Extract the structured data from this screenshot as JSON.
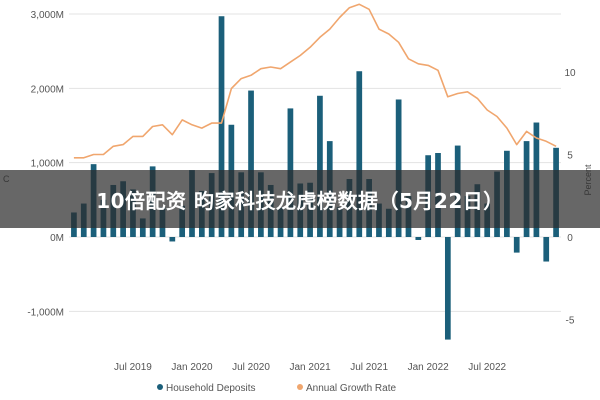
{
  "banner": {
    "title": "10倍配资 昀家科技龙虎榜数据（5月22日）"
  },
  "colors": {
    "bars": "#1b5f7a",
    "line": "#f0a66e",
    "grid": "#e3e3e3",
    "banner_bg": "#2d2d2d"
  },
  "chart_data": {
    "type": "bar+line",
    "y_left": {
      "range": [
        -1500,
        3000
      ],
      "ticks": [
        3000,
        2000,
        1000,
        0,
        -1000
      ],
      "tick_labels": [
        "3,000M",
        "2,000M",
        "1,000M",
        "0M",
        "-1,000M"
      ],
      "title": "C"
    },
    "y_right": {
      "range": [
        -7.5,
        14.5
      ],
      "ticks": [
        10,
        5,
        0,
        -5
      ],
      "tick_labels": [
        "10",
        "5",
        "0",
        "-5"
      ],
      "title": "Percent"
    },
    "x_tick_labels": [
      "Jul 2019",
      "Jan 2020",
      "Jul 2020",
      "Jan 2021",
      "Jul 2021",
      "Jan 2022",
      "Jul 2022"
    ],
    "x_tick_month_index": [
      6,
      12,
      18,
      24,
      30,
      36,
      42
    ],
    "legend": [
      {
        "name": "Household Deposits",
        "color": "#1b5f7a",
        "marker": "circle"
      },
      {
        "name": "Annual Growth Rate",
        "color": "#f0a66e",
        "marker": "circle"
      }
    ],
    "months_start": "2019-01",
    "series": [
      {
        "name": "Household Deposits",
        "kind": "bar",
        "values": [
          330,
          450,
          980,
          500,
          700,
          750,
          640,
          250,
          950,
          400,
          -60,
          420,
          900,
          620,
          860,
          2970,
          1510,
          870,
          1970,
          870,
          700,
          400,
          1730,
          720,
          730,
          1900,
          1290,
          400,
          780,
          2230,
          780,
          450,
          380,
          1850,
          550,
          -40,
          1100,
          1130,
          -1380,
          1230,
          550,
          710,
          450,
          880,
          1160,
          -210,
          1290,
          1540,
          -330,
          1200
        ]
      },
      {
        "name": "Annual Growth Rate",
        "kind": "line",
        "values": [
          4.8,
          4.8,
          5.0,
          5.0,
          5.5,
          5.6,
          6.1,
          6.1,
          6.7,
          6.8,
          6.2,
          7.1,
          6.8,
          6.6,
          6.9,
          6.9,
          9.0,
          9.6,
          9.8,
          10.2,
          10.3,
          10.2,
          10.6,
          11.0,
          11.5,
          12.1,
          12.6,
          13.3,
          13.9,
          14.1,
          13.8,
          12.6,
          12.3,
          11.8,
          10.8,
          10.5,
          10.4,
          10.1,
          8.5,
          8.7,
          8.8,
          8.4,
          7.7,
          7.3,
          6.6,
          5.6,
          6.4,
          6.0,
          5.8,
          5.5
        ]
      }
    ]
  }
}
